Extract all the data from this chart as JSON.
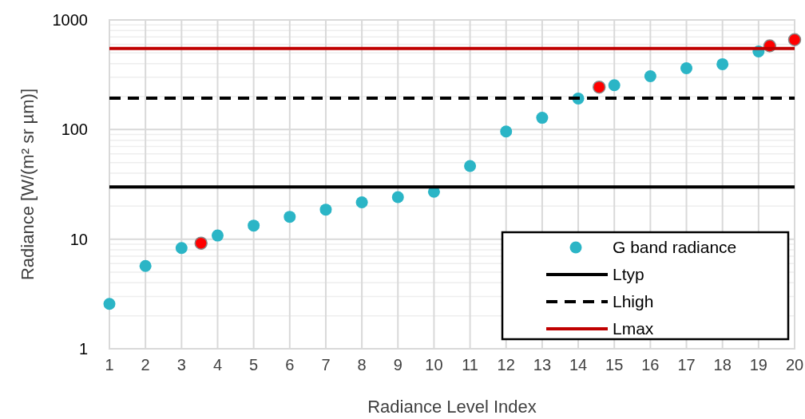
{
  "chart_data": {
    "type": "scatter",
    "xlabel": "Radiance Level Index",
    "ylabel": "Radiance [W/(m² sr µm)]",
    "x": [
      1,
      2,
      3,
      4,
      5,
      6,
      7,
      8,
      9,
      10,
      11,
      12,
      13,
      14,
      15,
      16,
      17,
      18,
      19
    ],
    "series": [
      {
        "name": "G band radiance",
        "color": "#2bb5c6",
        "marker": "circle",
        "values": [
          2.57,
          5.7,
          8.3,
          10.8,
          13.3,
          16,
          18.6,
          21.7,
          24.2,
          27.1,
          46.5,
          96,
          128,
          192,
          254,
          307,
          363,
          395,
          516
        ]
      },
      {
        "color": "#ff0000",
        "marker": "circle",
        "x": [
          3.54,
          14.58,
          19.31,
          20
        ],
        "values": [
          9.2,
          244,
          580,
          660
        ]
      },
      {
        "name": "Ltyp",
        "type": "line",
        "color": "#000000",
        "line_style": "solid",
        "x": [
          1,
          20
        ],
        "values": [
          30,
          30
        ]
      },
      {
        "name": "Lhigh",
        "type": "line",
        "color": "#000000",
        "line_style": "dashed",
        "x": [
          1,
          20
        ],
        "values": [
          193,
          193
        ]
      },
      {
        "name": "Lmax",
        "type": "line",
        "color": "#c00000",
        "line_style": "solid",
        "x": [
          1,
          20
        ],
        "values": [
          550,
          550
        ]
      }
    ],
    "log": "y",
    "xlim": [
      1,
      20
    ],
    "xticks": [
      1,
      2,
      3,
      4,
      5,
      6,
      7,
      8,
      9,
      10,
      11,
      12,
      13,
      14,
      15,
      16,
      17,
      18,
      19,
      20
    ],
    "ylim": [
      1,
      1000
    ],
    "yticks": [
      1,
      10,
      100,
      1000
    ],
    "grid": true,
    "legend": "bottom right"
  }
}
